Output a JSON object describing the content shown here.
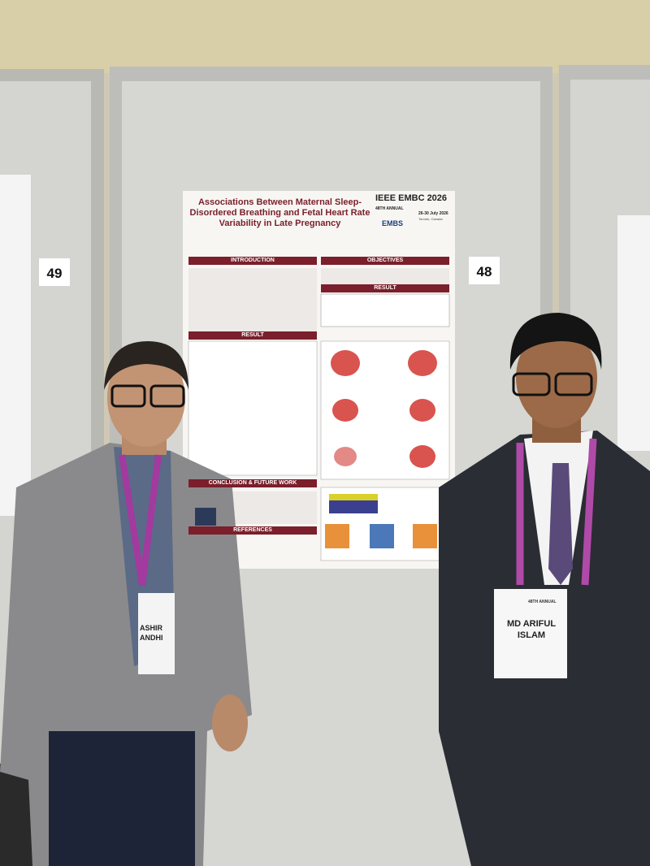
{
  "boards": [
    {
      "number": "49"
    },
    {
      "number": "48"
    }
  ],
  "poster": {
    "title": "Associations Between Maternal Sleep-Disordered Breathing and Fetal Heart Rate Variability in Late Pregnancy",
    "conference": "IEEE EMBC 2026",
    "edition": "48TH ANNUAL",
    "dates": "26-30 July 2026",
    "location": "Toronto, Canada",
    "society": "EMBS",
    "sections": {
      "intro": "INTRODUCTION",
      "objectives": "OBJECTIVES",
      "result_left": "RESULT",
      "result_right": "RESULT",
      "conclusion": "CONCLUSION & FUTURE WORK",
      "references": "REFERENCES"
    }
  },
  "badges": [
    {
      "name_line1": "ASHIR",
      "name_line2": "ANDHI"
    },
    {
      "edition": "48TH ANNUAL",
      "name_line1": "MD ARIFUL",
      "name_line2": "ISLAM"
    }
  ]
}
